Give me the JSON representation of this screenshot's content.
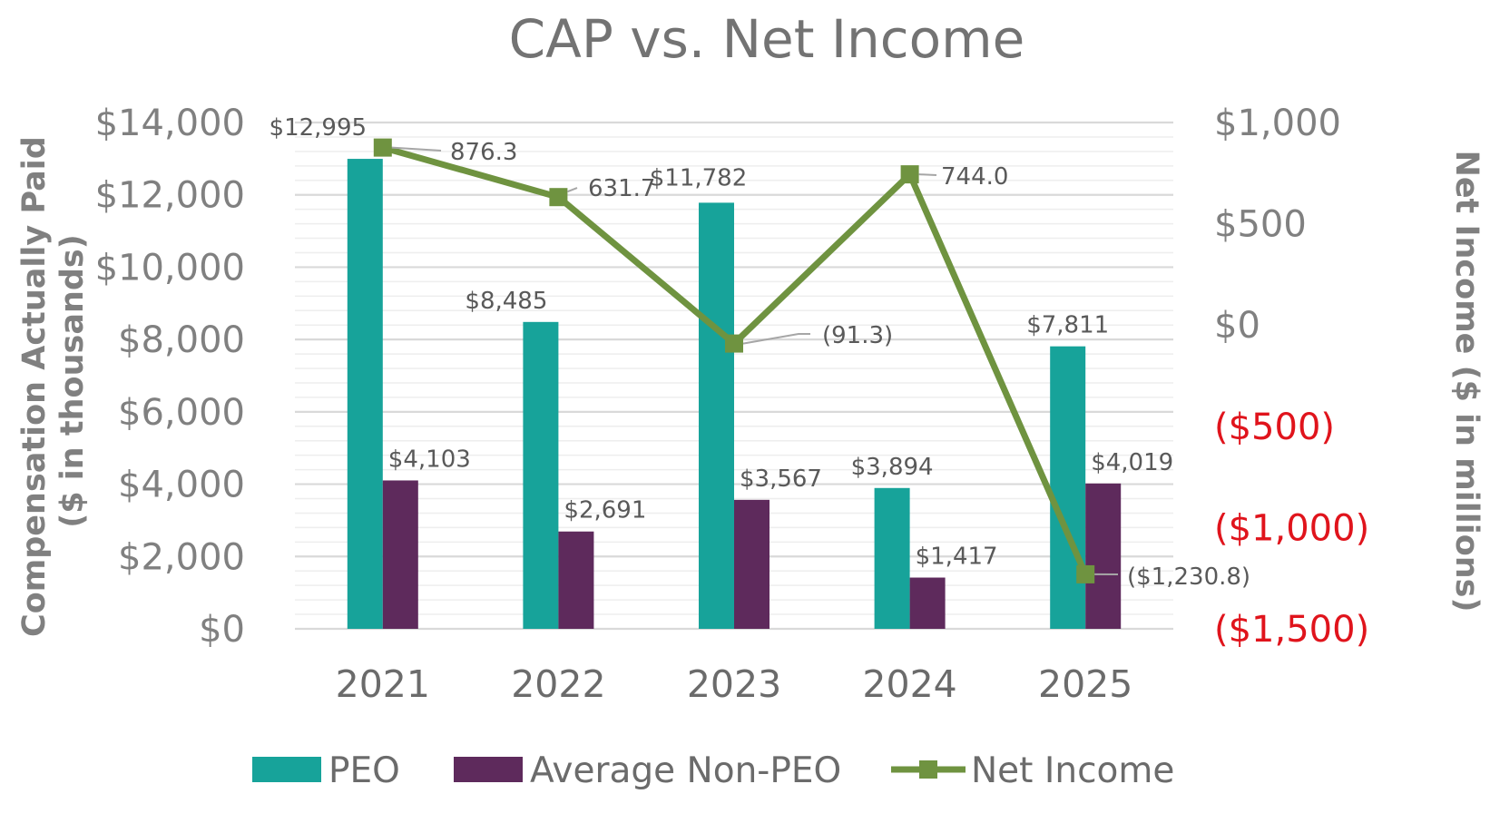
{
  "chart_data": {
    "type": "bar",
    "title": "CAP vs. Net Income",
    "categories": [
      "2021",
      "2022",
      "2023",
      "2024",
      "2025"
    ],
    "ylabel": "Compensation Actually Paid ($ in thousands)",
    "ylabel_lines": [
      "Compensation Actually Paid",
      "($ in thousands)"
    ],
    "y2label": "Net Income ($ in millions)",
    "ylim": [
      0,
      14000
    ],
    "y2lim": [
      -1500,
      1000
    ],
    "yticks": [
      0,
      2000,
      4000,
      6000,
      8000,
      10000,
      12000,
      14000
    ],
    "ytick_labels": [
      "$0",
      "$2,000",
      "$4,000",
      "$6,000",
      "$8,000",
      "$10,000",
      "$12,000",
      "$14,000"
    ],
    "y2ticks": [
      -1500,
      -1000,
      -500,
      0,
      500,
      1000
    ],
    "y2tick_labels": [
      "($1,500)",
      "($1,000)",
      "($500)",
      "$0",
      "$500",
      "$1,000"
    ],
    "grid": true,
    "legend_position": "bottom",
    "series": [
      {
        "name": "PEO",
        "type": "bar",
        "axis": "left",
        "color": "#17a39a",
        "values": [
          12995,
          8485,
          11782,
          3894,
          7811
        ],
        "labels": [
          "$12,995",
          "$8,485",
          "$11,782",
          "$3,894",
          "$7,811"
        ]
      },
      {
        "name": "Average Non-PEO",
        "type": "bar",
        "axis": "left",
        "color": "#5e2a5c",
        "values": [
          4103,
          2691,
          3567,
          1417,
          4019
        ],
        "labels": [
          "$4,103",
          "$2,691",
          "$3,567",
          "$1,417",
          "$4,019"
        ]
      },
      {
        "name": "Net Income",
        "type": "line",
        "axis": "right",
        "color": "#6f9340",
        "values": [
          876.3,
          631.7,
          -91.3,
          744.0,
          -1230.8
        ],
        "labels": [
          "876.3",
          "631.7",
          "(91.3)",
          "744.0",
          "($1,230.8)"
        ]
      }
    ]
  },
  "colors": {
    "negative_tick": "#e0141c",
    "grid": "#d9d9d9",
    "axis_text": "#808080"
  }
}
